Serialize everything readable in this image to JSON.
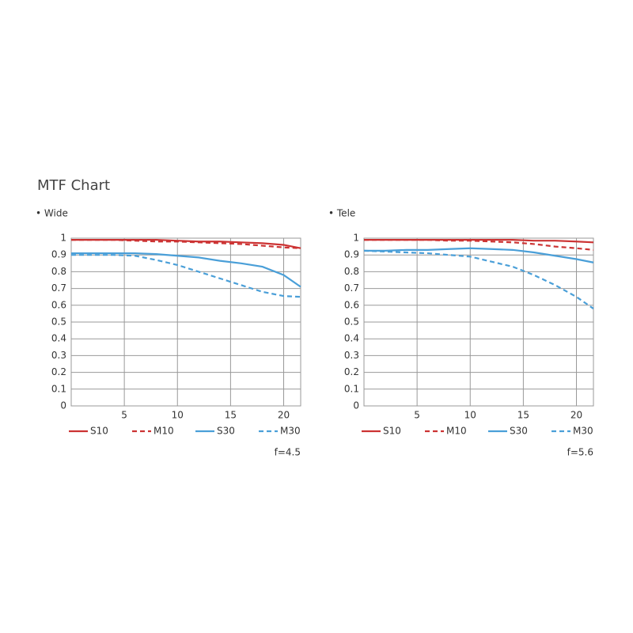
{
  "title": "MTF Chart",
  "chart_data": [
    {
      "type": "line",
      "subtitle": "• Wide",
      "note": "f=4.5",
      "x": [
        0,
        2,
        4,
        6,
        8,
        10,
        12,
        14,
        16,
        18,
        20,
        21.6
      ],
      "xlim": [
        0,
        21.6
      ],
      "xticks": [
        5,
        10,
        15,
        20
      ],
      "ylim": [
        0,
        1
      ],
      "yticks": [
        0,
        0.1,
        0.2,
        0.3,
        0.4,
        0.5,
        0.6,
        0.7,
        0.8,
        0.9,
        1
      ],
      "grid": true,
      "series": [
        {
          "name": "S10",
          "color": "#cc3333",
          "dash": false,
          "values": [
            0.99,
            0.99,
            0.99,
            0.99,
            0.99,
            0.985,
            0.98,
            0.98,
            0.975,
            0.97,
            0.96,
            0.94
          ]
        },
        {
          "name": "M10",
          "color": "#cc3333",
          "dash": true,
          "values": [
            0.99,
            0.99,
            0.99,
            0.985,
            0.98,
            0.98,
            0.975,
            0.97,
            0.965,
            0.955,
            0.945,
            0.94
          ]
        },
        {
          "name": "S30",
          "color": "#4a9fd8",
          "dash": false,
          "values": [
            0.91,
            0.91,
            0.91,
            0.91,
            0.905,
            0.895,
            0.885,
            0.865,
            0.85,
            0.83,
            0.78,
            0.71
          ]
        },
        {
          "name": "M30",
          "color": "#4a9fd8",
          "dash": true,
          "values": [
            0.9,
            0.9,
            0.9,
            0.895,
            0.87,
            0.84,
            0.8,
            0.76,
            0.72,
            0.68,
            0.655,
            0.65
          ]
        }
      ]
    },
    {
      "type": "line",
      "subtitle": "• Tele",
      "note": "f=5.6",
      "x": [
        0,
        2,
        4,
        6,
        8,
        10,
        12,
        14,
        16,
        18,
        20,
        21.6
      ],
      "xlim": [
        0,
        21.6
      ],
      "xticks": [
        5,
        10,
        15,
        20
      ],
      "ylim": [
        0,
        1
      ],
      "yticks": [
        0,
        0.1,
        0.2,
        0.3,
        0.4,
        0.5,
        0.6,
        0.7,
        0.8,
        0.9,
        1
      ],
      "grid": true,
      "series": [
        {
          "name": "S10",
          "color": "#cc3333",
          "dash": false,
          "values": [
            0.99,
            0.99,
            0.99,
            0.99,
            0.99,
            0.99,
            0.99,
            0.99,
            0.985,
            0.985,
            0.98,
            0.975
          ]
        },
        {
          "name": "M10",
          "color": "#cc3333",
          "dash": true,
          "values": [
            0.99,
            0.99,
            0.99,
            0.99,
            0.985,
            0.985,
            0.98,
            0.975,
            0.965,
            0.95,
            0.94,
            0.93
          ]
        },
        {
          "name": "S30",
          "color": "#4a9fd8",
          "dash": false,
          "values": [
            0.925,
            0.925,
            0.93,
            0.93,
            0.935,
            0.94,
            0.935,
            0.93,
            0.915,
            0.895,
            0.875,
            0.855
          ]
        },
        {
          "name": "M30",
          "color": "#4a9fd8",
          "dash": true,
          "values": [
            0.925,
            0.92,
            0.915,
            0.91,
            0.9,
            0.89,
            0.86,
            0.83,
            0.78,
            0.72,
            0.65,
            0.58
          ]
        }
      ]
    }
  ]
}
